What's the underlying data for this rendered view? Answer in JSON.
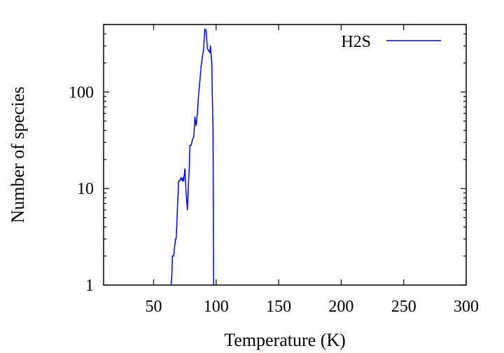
{
  "chart_data": {
    "type": "line",
    "title": "",
    "xlabel": "Temperature (K)",
    "ylabel": "Number of species",
    "xlim": [
      10,
      300
    ],
    "ylim": [
      1,
      500
    ],
    "yscale": "log",
    "grid": false,
    "legend_position": "top-right",
    "x_ticks": [
      50,
      100,
      150,
      200,
      250,
      300
    ],
    "x_tick_labels": [
      "50",
      "100",
      "150",
      "200",
      "250",
      "300"
    ],
    "y_ticks": [
      1,
      10,
      100
    ],
    "y_tick_labels": [
      "1",
      "10",
      "100"
    ],
    "series": [
      {
        "name": "H2S",
        "color": "#0000ff",
        "x": [
          64,
          64.5,
          65,
          66,
          66.5,
          67.5,
          68,
          68.5,
          69,
          70,
          71,
          72,
          73,
          73.5,
          74,
          75,
          76,
          77,
          78,
          78.5,
          79,
          80,
          81,
          82,
          82.5,
          83,
          84,
          85,
          86,
          87,
          88,
          89,
          90,
          91,
          92,
          93,
          94,
          95,
          95.5,
          96,
          96.5,
          97,
          97.5,
          98
        ],
        "y": [
          1,
          1.2,
          2,
          2,
          2.3,
          3,
          3,
          4,
          6,
          12,
          12,
          13,
          12,
          13,
          12,
          16,
          9,
          6,
          12,
          16,
          28,
          28,
          32,
          34,
          40,
          55,
          45,
          60,
          95,
          130,
          185,
          230,
          280,
          450,
          430,
          280,
          270,
          255,
          300,
          240,
          200,
          90,
          40,
          1
        ]
      }
    ]
  }
}
